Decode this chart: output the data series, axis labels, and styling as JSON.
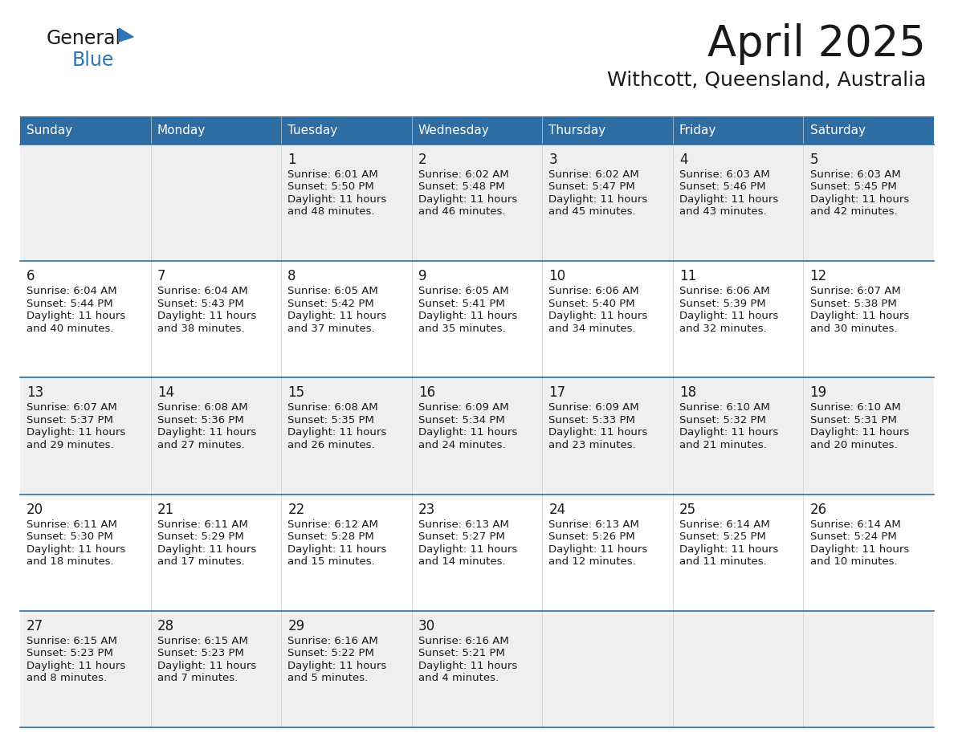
{
  "title": "April 2025",
  "subtitle": "Withcott, Queensland, Australia",
  "header_bg_color": "#2E6DA4",
  "header_text_color": "#FFFFFF",
  "odd_row_bg": "#EFEFEF",
  "even_row_bg": "#FFFFFF",
  "line_color": "#2E6DA4",
  "days_of_week": [
    "Sunday",
    "Monday",
    "Tuesday",
    "Wednesday",
    "Thursday",
    "Friday",
    "Saturday"
  ],
  "logo_color": "#2E75B6",
  "calendar_data": [
    [
      {
        "day": "",
        "sunrise": "",
        "sunset": "",
        "daylight": ""
      },
      {
        "day": "",
        "sunrise": "",
        "sunset": "",
        "daylight": ""
      },
      {
        "day": "1",
        "sunrise": "6:01 AM",
        "sunset": "5:50 PM",
        "daylight_l1": "Daylight: 11 hours",
        "daylight_l2": "and 48 minutes."
      },
      {
        "day": "2",
        "sunrise": "6:02 AM",
        "sunset": "5:48 PM",
        "daylight_l1": "Daylight: 11 hours",
        "daylight_l2": "and 46 minutes."
      },
      {
        "day": "3",
        "sunrise": "6:02 AM",
        "sunset": "5:47 PM",
        "daylight_l1": "Daylight: 11 hours",
        "daylight_l2": "and 45 minutes."
      },
      {
        "day": "4",
        "sunrise": "6:03 AM",
        "sunset": "5:46 PM",
        "daylight_l1": "Daylight: 11 hours",
        "daylight_l2": "and 43 minutes."
      },
      {
        "day": "5",
        "sunrise": "6:03 AM",
        "sunset": "5:45 PM",
        "daylight_l1": "Daylight: 11 hours",
        "daylight_l2": "and 42 minutes."
      }
    ],
    [
      {
        "day": "6",
        "sunrise": "6:04 AM",
        "sunset": "5:44 PM",
        "daylight_l1": "Daylight: 11 hours",
        "daylight_l2": "and 40 minutes."
      },
      {
        "day": "7",
        "sunrise": "6:04 AM",
        "sunset": "5:43 PM",
        "daylight_l1": "Daylight: 11 hours",
        "daylight_l2": "and 38 minutes."
      },
      {
        "day": "8",
        "sunrise": "6:05 AM",
        "sunset": "5:42 PM",
        "daylight_l1": "Daylight: 11 hours",
        "daylight_l2": "and 37 minutes."
      },
      {
        "day": "9",
        "sunrise": "6:05 AM",
        "sunset": "5:41 PM",
        "daylight_l1": "Daylight: 11 hours",
        "daylight_l2": "and 35 minutes."
      },
      {
        "day": "10",
        "sunrise": "6:06 AM",
        "sunset": "5:40 PM",
        "daylight_l1": "Daylight: 11 hours",
        "daylight_l2": "and 34 minutes."
      },
      {
        "day": "11",
        "sunrise": "6:06 AM",
        "sunset": "5:39 PM",
        "daylight_l1": "Daylight: 11 hours",
        "daylight_l2": "and 32 minutes."
      },
      {
        "day": "12",
        "sunrise": "6:07 AM",
        "sunset": "5:38 PM",
        "daylight_l1": "Daylight: 11 hours",
        "daylight_l2": "and 30 minutes."
      }
    ],
    [
      {
        "day": "13",
        "sunrise": "6:07 AM",
        "sunset": "5:37 PM",
        "daylight_l1": "Daylight: 11 hours",
        "daylight_l2": "and 29 minutes."
      },
      {
        "day": "14",
        "sunrise": "6:08 AM",
        "sunset": "5:36 PM",
        "daylight_l1": "Daylight: 11 hours",
        "daylight_l2": "and 27 minutes."
      },
      {
        "day": "15",
        "sunrise": "6:08 AM",
        "sunset": "5:35 PM",
        "daylight_l1": "Daylight: 11 hours",
        "daylight_l2": "and 26 minutes."
      },
      {
        "day": "16",
        "sunrise": "6:09 AM",
        "sunset": "5:34 PM",
        "daylight_l1": "Daylight: 11 hours",
        "daylight_l2": "and 24 minutes."
      },
      {
        "day": "17",
        "sunrise": "6:09 AM",
        "sunset": "5:33 PM",
        "daylight_l1": "Daylight: 11 hours",
        "daylight_l2": "and 23 minutes."
      },
      {
        "day": "18",
        "sunrise": "6:10 AM",
        "sunset": "5:32 PM",
        "daylight_l1": "Daylight: 11 hours",
        "daylight_l2": "and 21 minutes."
      },
      {
        "day": "19",
        "sunrise": "6:10 AM",
        "sunset": "5:31 PM",
        "daylight_l1": "Daylight: 11 hours",
        "daylight_l2": "and 20 minutes."
      }
    ],
    [
      {
        "day": "20",
        "sunrise": "6:11 AM",
        "sunset": "5:30 PM",
        "daylight_l1": "Daylight: 11 hours",
        "daylight_l2": "and 18 minutes."
      },
      {
        "day": "21",
        "sunrise": "6:11 AM",
        "sunset": "5:29 PM",
        "daylight_l1": "Daylight: 11 hours",
        "daylight_l2": "and 17 minutes."
      },
      {
        "day": "22",
        "sunrise": "6:12 AM",
        "sunset": "5:28 PM",
        "daylight_l1": "Daylight: 11 hours",
        "daylight_l2": "and 15 minutes."
      },
      {
        "day": "23",
        "sunrise": "6:13 AM",
        "sunset": "5:27 PM",
        "daylight_l1": "Daylight: 11 hours",
        "daylight_l2": "and 14 minutes."
      },
      {
        "day": "24",
        "sunrise": "6:13 AM",
        "sunset": "5:26 PM",
        "daylight_l1": "Daylight: 11 hours",
        "daylight_l2": "and 12 minutes."
      },
      {
        "day": "25",
        "sunrise": "6:14 AM",
        "sunset": "5:25 PM",
        "daylight_l1": "Daylight: 11 hours",
        "daylight_l2": "and 11 minutes."
      },
      {
        "day": "26",
        "sunrise": "6:14 AM",
        "sunset": "5:24 PM",
        "daylight_l1": "Daylight: 11 hours",
        "daylight_l2": "and 10 minutes."
      }
    ],
    [
      {
        "day": "27",
        "sunrise": "6:15 AM",
        "sunset": "5:23 PM",
        "daylight_l1": "Daylight: 11 hours",
        "daylight_l2": "and 8 minutes."
      },
      {
        "day": "28",
        "sunrise": "6:15 AM",
        "sunset": "5:23 PM",
        "daylight_l1": "Daylight: 11 hours",
        "daylight_l2": "and 7 minutes."
      },
      {
        "day": "29",
        "sunrise": "6:16 AM",
        "sunset": "5:22 PM",
        "daylight_l1": "Daylight: 11 hours",
        "daylight_l2": "and 5 minutes."
      },
      {
        "day": "30",
        "sunrise": "6:16 AM",
        "sunset": "5:21 PM",
        "daylight_l1": "Daylight: 11 hours",
        "daylight_l2": "and 4 minutes."
      },
      {
        "day": "",
        "sunrise": "",
        "sunset": "",
        "daylight_l1": "",
        "daylight_l2": ""
      },
      {
        "day": "",
        "sunrise": "",
        "sunset": "",
        "daylight_l1": "",
        "daylight_l2": ""
      },
      {
        "day": "",
        "sunrise": "",
        "sunset": "",
        "daylight_l1": "",
        "daylight_l2": ""
      }
    ]
  ]
}
